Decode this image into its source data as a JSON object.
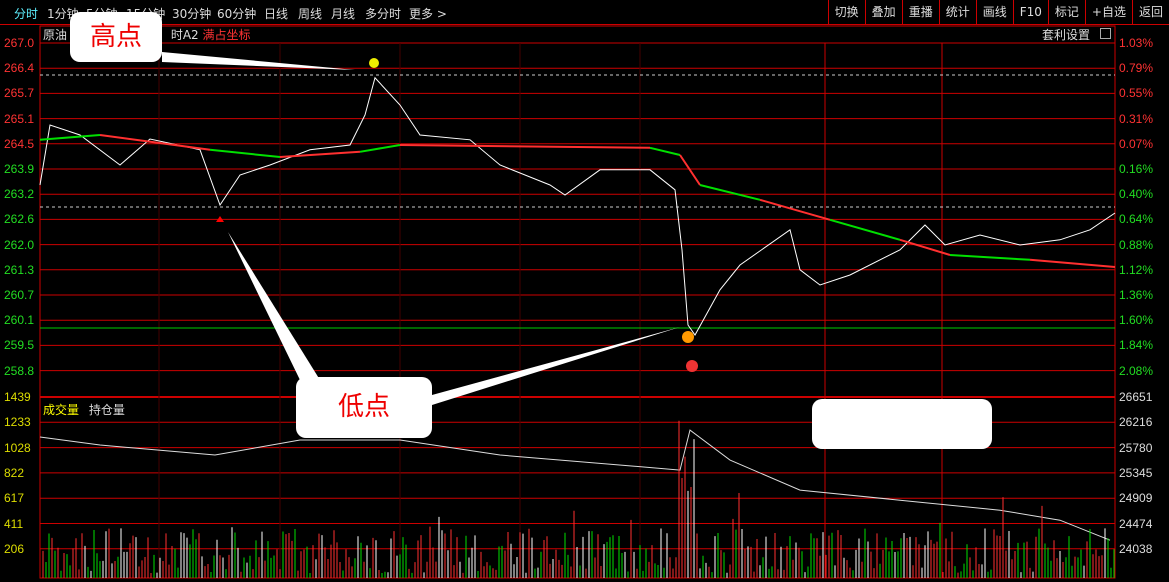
{
  "toolbar": {
    "tabs": [
      "分时",
      "1分钟",
      "5分钟",
      "15分钟",
      "30分钟",
      "60分钟",
      "日线",
      "周线",
      "月线",
      "多分时",
      "更多 >"
    ],
    "active": 0,
    "right": [
      "切换",
      "叠加",
      "重播",
      "统计",
      "画线",
      "F10",
      "标记",
      "+自选",
      "返回"
    ]
  },
  "chart_header": {
    "name": "原油",
    "indicator": "时A2",
    "mode": "满占坐标",
    "arb_settings": "套利设置"
  },
  "volume_header": {
    "volume": "成交量",
    "open_interest": "持仓量"
  },
  "callouts": {
    "high": "高点",
    "low": "低点",
    "blank": ""
  },
  "colors": {
    "up": "#ff3030",
    "down": "#00e000",
    "grid": "#c00000",
    "line": "#ffffff",
    "accent": "#5ef0ff"
  },
  "chart_data": {
    "type": "line",
    "price_axis": [
      "267.0",
      "266.4",
      "265.7",
      "265.1",
      "264.5",
      "263.9",
      "263.2",
      "262.6",
      "262.0",
      "261.3",
      "260.7",
      "260.1",
      "259.5",
      "258.8"
    ],
    "pct_axis": [
      "1.03%",
      "0.79%",
      "0.55%",
      "0.31%",
      "0.07%",
      "0.16%",
      "0.40%",
      "0.64%",
      "0.88%",
      "1.12%",
      "1.36%",
      "1.60%",
      "1.84%",
      "2.08%"
    ],
    "volume_axis": [
      "1439",
      "1233",
      "1028",
      "822",
      "617",
      "411",
      "206"
    ],
    "oi_axis": [
      "26651",
      "26216",
      "25780",
      "25345",
      "24909",
      "24474",
      "24038"
    ],
    "ylim": [
      258.8,
      267.0
    ],
    "price": [
      [
        0,
        263.45
      ],
      [
        10,
        264.95
      ],
      [
        40,
        264.7
      ],
      [
        80,
        263.95
      ],
      [
        110,
        264.6
      ],
      [
        160,
        264.33
      ],
      [
        180,
        262.95
      ],
      [
        200,
        263.7
      ],
      [
        230,
        263.95
      ],
      [
        270,
        264.33
      ],
      [
        310,
        264.45
      ],
      [
        325,
        265.2
      ],
      [
        335,
        266.13
      ],
      [
        360,
        265.45
      ],
      [
        380,
        264.7
      ],
      [
        430,
        264.58
      ],
      [
        460,
        263.95
      ],
      [
        510,
        263.45
      ],
      [
        525,
        263.2
      ],
      [
        560,
        263.83
      ],
      [
        610,
        263.83
      ],
      [
        635,
        263.33
      ],
      [
        642,
        261.83
      ],
      [
        648,
        259.95
      ],
      [
        655,
        259.7
      ],
      [
        680,
        260.83
      ],
      [
        700,
        261.45
      ],
      [
        750,
        262.33
      ],
      [
        760,
        261.33
      ],
      [
        780,
        260.95
      ],
      [
        810,
        261.2
      ],
      [
        860,
        261.83
      ],
      [
        885,
        262.45
      ],
      [
        905,
        261.95
      ],
      [
        940,
        262.2
      ],
      [
        980,
        261.95
      ],
      [
        1020,
        262.08
      ],
      [
        1050,
        262.33
      ],
      [
        1075,
        262.75
      ]
    ],
    "average": [
      [
        0,
        264.58
      ],
      [
        60,
        264.7
      ],
      [
        170,
        264.33
      ],
      [
        240,
        264.15
      ],
      [
        320,
        264.28
      ],
      [
        360,
        264.45
      ],
      [
        610,
        264.38
      ],
      [
        640,
        264.2
      ],
      [
        660,
        263.45
      ],
      [
        720,
        263.08
      ],
      [
        790,
        262.58
      ],
      [
        860,
        262.08
      ],
      [
        910,
        261.7
      ],
      [
        990,
        261.58
      ],
      [
        1075,
        261.4
      ]
    ],
    "open_interest": [
      [
        0,
        25963
      ],
      [
        60,
        25825
      ],
      [
        175,
        25653
      ],
      [
        260,
        25911
      ],
      [
        360,
        25911
      ],
      [
        460,
        25653
      ],
      [
        640,
        25395
      ],
      [
        650,
        26083
      ],
      [
        690,
        25567
      ],
      [
        760,
        25050
      ],
      [
        860,
        24877
      ],
      [
        960,
        24705
      ],
      [
        1020,
        24533
      ],
      [
        1070,
        24189
      ]
    ]
  }
}
